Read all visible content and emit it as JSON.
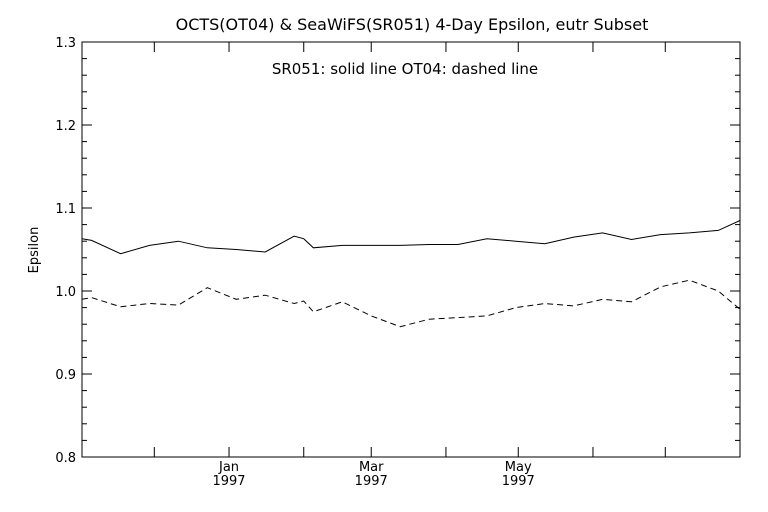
{
  "chart_data": {
    "type": "line",
    "title": "OCTS(OT04) & SeaWiFS(SR051) 4-Day Epsilon, eutr Subset",
    "annotation": "SR051: solid line    OT04: dashed line",
    "xlabel": "",
    "ylabel": "Epsilon",
    "ylim": [
      0.8,
      1.3
    ],
    "yticks": [
      "0.8",
      "0.9",
      "1.0",
      "1.1",
      "1.2",
      "1.3"
    ],
    "xlim": [
      "1996-11-01",
      "1997-08-01"
    ],
    "x_major_ticks": [
      {
        "date": "1997-01-01",
        "month": "Jan",
        "year": "1997"
      },
      {
        "date": "1997-03-01",
        "month": "Mar",
        "year": "1997"
      },
      {
        "date": "1997-05-01",
        "month": "May",
        "year": "1997"
      }
    ],
    "x_minor_ticks": [
      "1996-12-01",
      "1997-02-01",
      "1997-04-01",
      "1997-06-01",
      "1997-07-01"
    ],
    "grid": false,
    "series": [
      {
        "name": "SR051",
        "style": "solid",
        "color": "#000000",
        "x": [
          "1996-11-01",
          "1996-11-05",
          "1996-11-17",
          "1996-11-29",
          "1996-12-11",
          "1996-12-23",
          "1997-01-04",
          "1997-01-16",
          "1997-01-28",
          "1997-02-01",
          "1997-02-05",
          "1997-02-17",
          "1997-03-01",
          "1997-03-13",
          "1997-03-25",
          "1997-04-06",
          "1997-04-18",
          "1997-04-30",
          "1997-05-12",
          "1997-05-24",
          "1997-06-05",
          "1997-06-17",
          "1997-06-29",
          "1997-07-11",
          "1997-07-23",
          "1997-08-01"
        ],
        "y": [
          1.063,
          1.061,
          1.045,
          1.055,
          1.06,
          1.052,
          1.05,
          1.047,
          1.066,
          1.063,
          1.052,
          1.055,
          1.055,
          1.055,
          1.056,
          1.056,
          1.063,
          1.06,
          1.057,
          1.065,
          1.07,
          1.062,
          1.068,
          1.07,
          1.073,
          1.085
        ]
      },
      {
        "name": "OT04",
        "style": "dashed",
        "color": "#000000",
        "x": [
          "1996-11-01",
          "1996-11-05",
          "1996-11-17",
          "1996-11-29",
          "1996-12-11",
          "1996-12-23",
          "1997-01-04",
          "1997-01-16",
          "1997-01-28",
          "1997-02-01",
          "1997-02-05",
          "1997-02-17",
          "1997-03-01",
          "1997-03-13",
          "1997-03-25",
          "1997-04-06",
          "1997-04-18",
          "1997-04-30",
          "1997-05-12",
          "1997-05-24",
          "1997-06-05",
          "1997-06-17",
          "1997-06-29",
          "1997-07-11",
          "1997-07-23",
          "1997-08-01"
        ],
        "y": [
          0.99,
          0.992,
          0.981,
          0.985,
          0.983,
          1.004,
          0.99,
          0.995,
          0.985,
          0.988,
          0.975,
          0.987,
          0.97,
          0.957,
          0.966,
          0.968,
          0.97,
          0.98,
          0.985,
          0.982,
          0.99,
          0.987,
          1.005,
          1.013,
          1.0,
          0.978
        ]
      }
    ]
  }
}
